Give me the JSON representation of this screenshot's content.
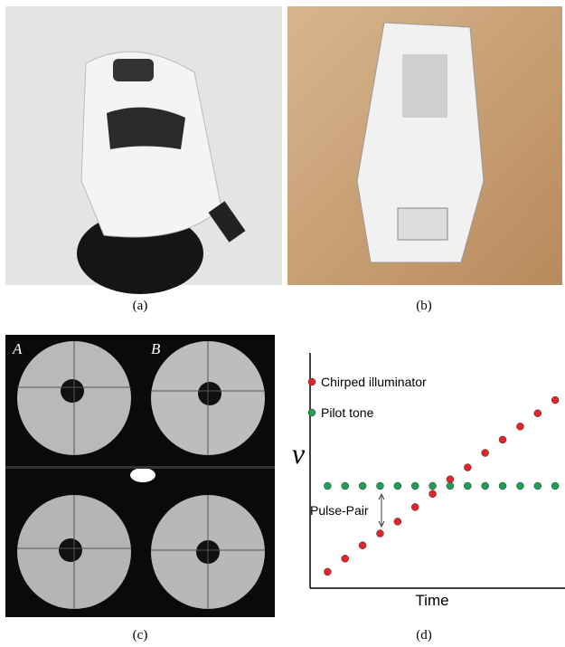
{
  "figure": {
    "panel_labels": [
      "(a)",
      "(b)",
      "(c)",
      "(d)"
    ],
    "image_labels": [
      "A",
      "B"
    ]
  },
  "chart_data": {
    "type": "scatter",
    "x_label": "Time",
    "y_label": "ν",
    "annotation": "Pulse-Pair",
    "xlim": [
      0,
      14.56
    ],
    "ylim": [
      -7.74,
      10.07
    ],
    "series": [
      {
        "name": "Chirped illuminator",
        "color": "#e3242b",
        "x": [
          1,
          2,
          3,
          4,
          5,
          6,
          7,
          8,
          9,
          10,
          11,
          12,
          13,
          14
        ],
        "values": [
          -6.5,
          -5.5,
          -4.5,
          -3.6,
          -2.7,
          -1.6,
          -0.6,
          0.5,
          1.4,
          2.5,
          3.5,
          4.5,
          5.5,
          6.5
        ]
      },
      {
        "name": "Pilot tone",
        "color": "#1f9e57",
        "x": [
          1,
          2,
          3,
          4,
          5,
          6,
          7,
          8,
          9,
          10,
          11,
          12,
          13,
          14
        ],
        "values": [
          0,
          0,
          0,
          0,
          0,
          0,
          0,
          0,
          0,
          0,
          0,
          0,
          0,
          0
        ]
      }
    ]
  }
}
